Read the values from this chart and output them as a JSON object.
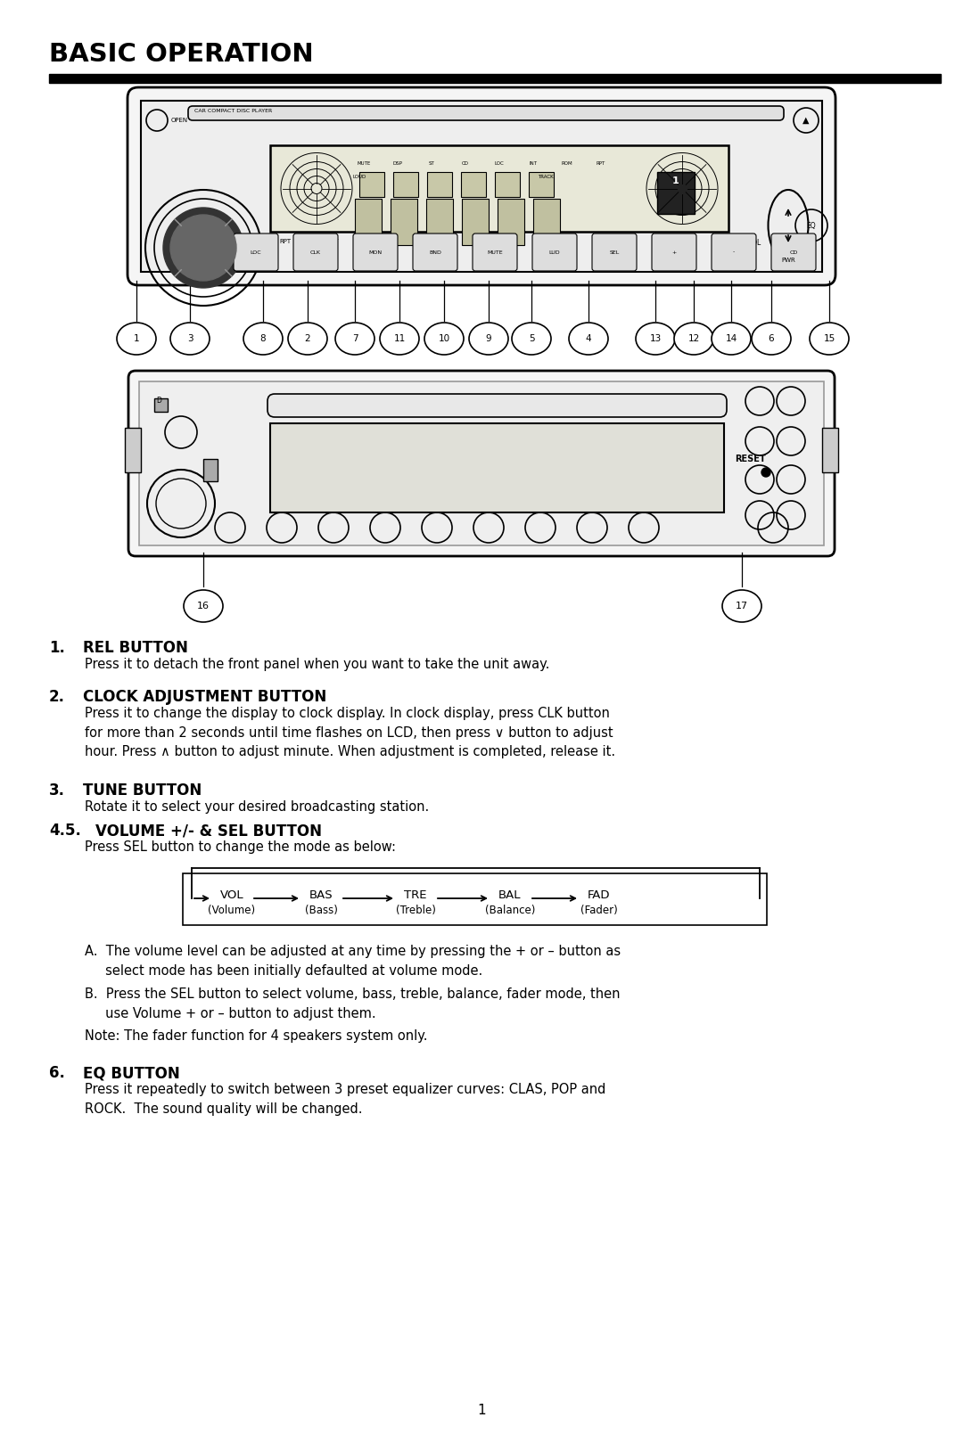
{
  "title": "BASIC OPERATION",
  "bg_color": "#ffffff",
  "page_num": "1",
  "vol_chain": [
    {
      "label": "VOL",
      "sub": "(Volume)"
    },
    {
      "label": "BAS",
      "sub": "(Bass)"
    },
    {
      "label": "TRE",
      "sub": "(Treble)"
    },
    {
      "label": "BAL",
      "sub": "(Balance)"
    },
    {
      "label": "FAD",
      "sub": "(Fader)"
    }
  ],
  "callout_nums_top": [
    "1",
    "3",
    "8",
    "2",
    "7",
    "11",
    "10",
    "9",
    "5",
    "4",
    "13",
    "12",
    "14",
    "6",
    "15"
  ],
  "callout_nums_bot": [
    "16",
    "17"
  ],
  "section1_head": "REL BUTTON",
  "section1_body": "Press it to detach the front panel when you want to take the unit away.",
  "section2_head": "CLOCK ADJUSTMENT BUTTON",
  "section2_body": "Press it to change the display to clock display. In clock display, press CLK button\nfor more than 2 seconds until time flashes on LCD, then press ∨ button to adjust\nhour. Press ∧ button to adjust minute. When adjustment is completed, release it.",
  "section3_head": "TUNE BUTTON",
  "section3_body": "Rotate it to select your desired broadcasting station.",
  "section45_head": "VOLUME +/- & SEL BUTTON",
  "section45_body": "Press SEL button to change the mode as below:",
  "note_a": "A.  The volume level can be adjusted at any time by pressing the + or – button as\n     select mode has been initially defaulted at volume mode.",
  "note_b": "B.  Press the SEL button to select volume, bass, treble, balance, fader mode, then\n     use Volume + or – button to adjust them.",
  "note_c": "Note: The fader function for 4 speakers system only.",
  "section6_head": "EQ BUTTON",
  "section6_body": "Press it repeatedly to switch between 3 preset equalizer curves: CLAS, POP and\nROCK.  The sound quality will be changed."
}
